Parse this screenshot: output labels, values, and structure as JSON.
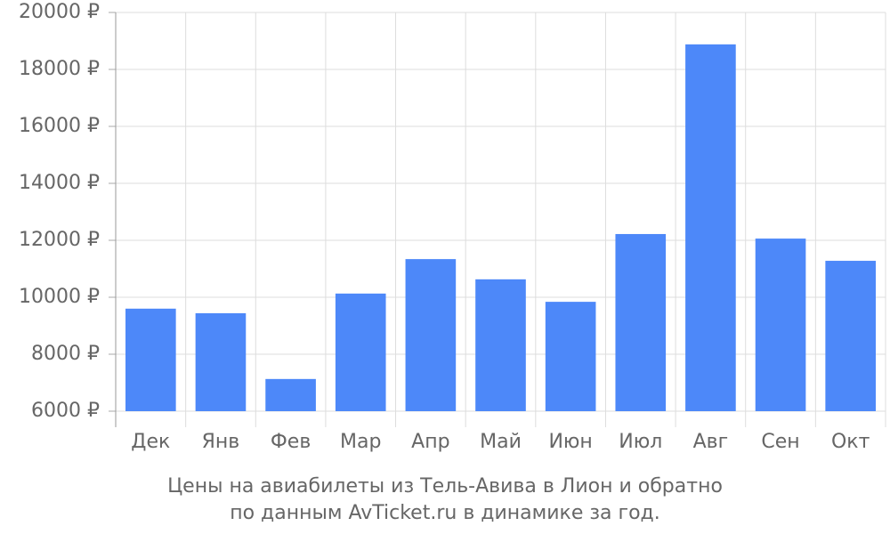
{
  "chart_data": {
    "type": "bar",
    "title": "Цены на авиабилеты из Тель-Авива в Лион и обратно",
    "subtitle": "по данным AvTicket.ru в динамике за год.",
    "categories": [
      "Дек",
      "Янв",
      "Фев",
      "Мар",
      "Апр",
      "Май",
      "Июн",
      "Июл",
      "Авг",
      "Сен",
      "Окт"
    ],
    "values": [
      9600,
      9440,
      7130,
      10130,
      11340,
      10630,
      9840,
      12220,
      18880,
      12060,
      11280
    ],
    "color": "#4d88f9",
    "ylim": [
      6000,
      20000
    ],
    "yticks": [
      {
        "value": 6000,
        "label": "6000 ₽"
      },
      {
        "value": 8000,
        "label": "8000 ₽"
      },
      {
        "value": 10000,
        "label": "10000 ₽"
      },
      {
        "value": 12000,
        "label": "12000 ₽"
      },
      {
        "value": 14000,
        "label": "14000 ₽"
      },
      {
        "value": 16000,
        "label": "16000 ₽"
      },
      {
        "value": 18000,
        "label": "18000 ₽"
      },
      {
        "value": 20000,
        "label": "20000 ₽"
      }
    ],
    "grid": true
  }
}
